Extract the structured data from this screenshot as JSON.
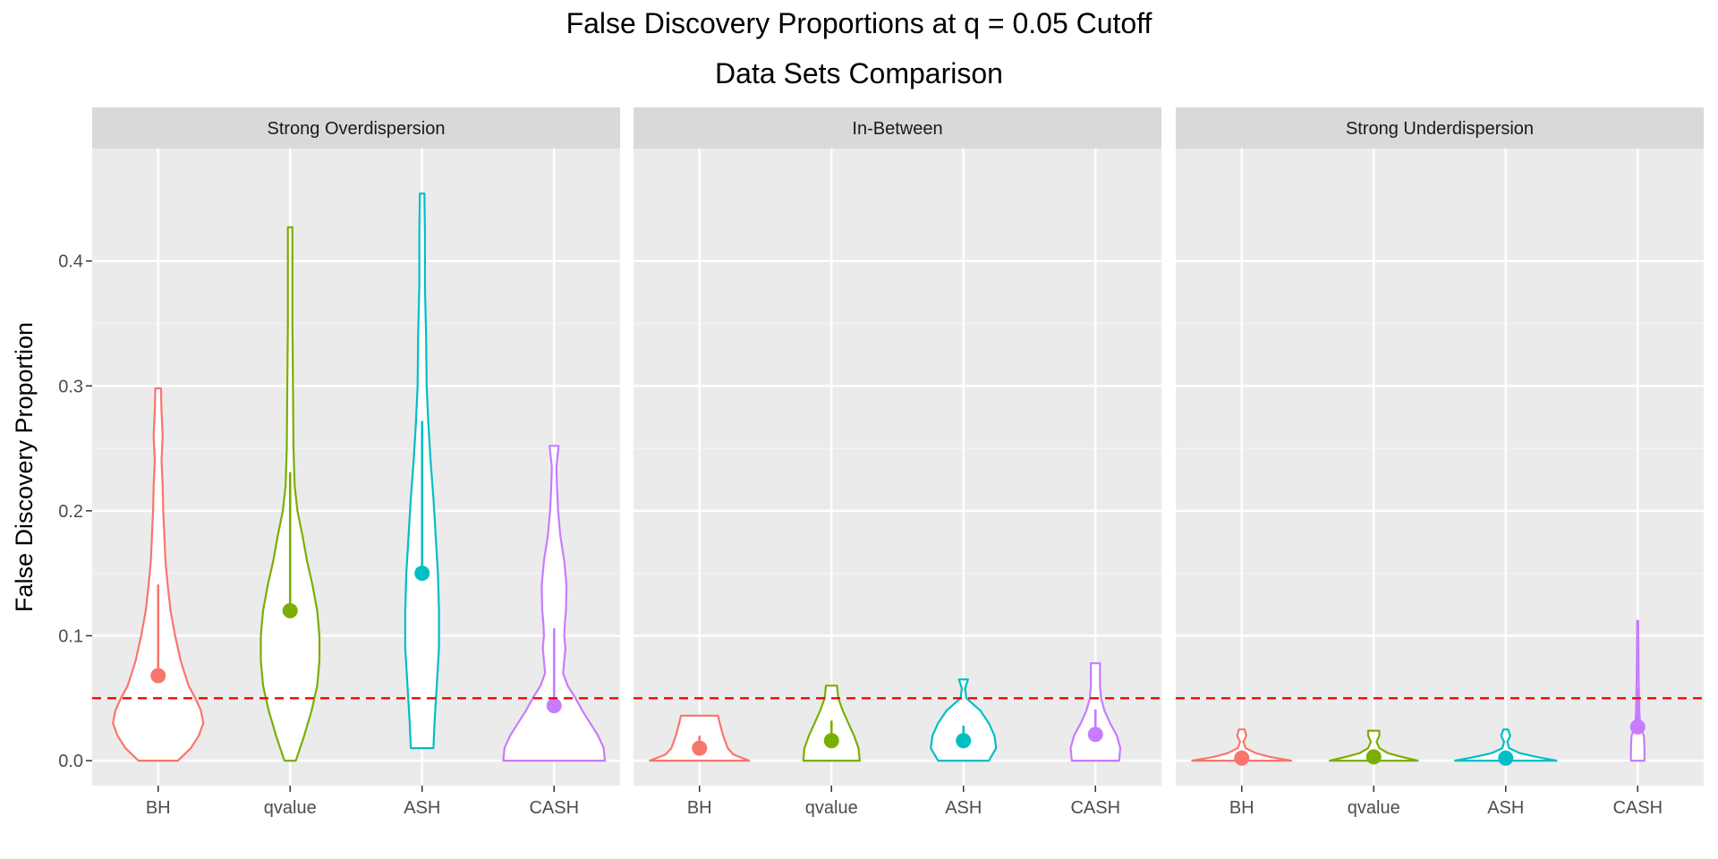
{
  "title": "False Discovery Proportions at q = 0.05 Cutoff",
  "subtitle": "Data Sets Comparison",
  "chart_data": {
    "type": "violin",
    "ylabel": "False Discovery Proportion",
    "xlabel": "",
    "ylim": [
      -0.02,
      0.49
    ],
    "yticks": [
      0.0,
      0.1,
      0.2,
      0.3,
      0.4
    ],
    "ytick_labels": [
      "0.0",
      "0.1",
      "0.2",
      "0.3",
      "0.4"
    ],
    "reference_line": {
      "y": 0.05,
      "color": "#FF0000",
      "style": "dashed"
    },
    "methods": [
      "BH",
      "qvalue",
      "ASH",
      "CASH"
    ],
    "colors": {
      "BH": "#F8766D",
      "qvalue": "#7CAE00",
      "ASH": "#00BFC4",
      "CASH": "#C77CFF"
    },
    "grid": true,
    "legend": "none",
    "panels": [
      {
        "name": "Strong Overdispersion",
        "series": [
          {
            "method": "BH",
            "point": 0.068,
            "whisker": [
              0.068,
              0.141
            ],
            "range": [
              0.0,
              0.298
            ],
            "profile": [
              [
                0.0,
                0.35
              ],
              [
                0.01,
                0.58
              ],
              [
                0.02,
                0.72
              ],
              [
                0.03,
                0.8
              ],
              [
                0.04,
                0.76
              ],
              [
                0.05,
                0.66
              ],
              [
                0.06,
                0.54
              ],
              [
                0.08,
                0.4
              ],
              [
                0.1,
                0.3
              ],
              [
                0.12,
                0.22
              ],
              [
                0.14,
                0.17
              ],
              [
                0.16,
                0.13
              ],
              [
                0.18,
                0.11
              ],
              [
                0.2,
                0.09
              ],
              [
                0.22,
                0.08
              ],
              [
                0.24,
                0.06
              ],
              [
                0.26,
                0.08
              ],
              [
                0.28,
                0.06
              ],
              [
                0.298,
                0.05
              ]
            ]
          },
          {
            "method": "qvalue",
            "point": 0.12,
            "whisker": [
              0.12,
              0.231
            ],
            "range": [
              0.0,
              0.427
            ],
            "profile": [
              [
                0.0,
                0.1
              ],
              [
                0.02,
                0.25
              ],
              [
                0.04,
                0.38
              ],
              [
                0.06,
                0.48
              ],
              [
                0.08,
                0.52
              ],
              [
                0.1,
                0.52
              ],
              [
                0.12,
                0.48
              ],
              [
                0.14,
                0.4
              ],
              [
                0.16,
                0.3
              ],
              [
                0.18,
                0.22
              ],
              [
                0.2,
                0.13
              ],
              [
                0.22,
                0.08
              ],
              [
                0.25,
                0.06
              ],
              [
                0.3,
                0.05
              ],
              [
                0.35,
                0.04
              ],
              [
                0.4,
                0.04
              ],
              [
                0.427,
                0.04
              ]
            ]
          },
          {
            "method": "ASH",
            "point": 0.15,
            "whisker": [
              0.15,
              0.272
            ],
            "range": [
              0.01,
              0.454
            ],
            "profile": [
              [
                0.01,
                0.2
              ],
              [
                0.03,
                0.22
              ],
              [
                0.06,
                0.26
              ],
              [
                0.09,
                0.3
              ],
              [
                0.12,
                0.3
              ],
              [
                0.15,
                0.28
              ],
              [
                0.18,
                0.24
              ],
              [
                0.21,
                0.2
              ],
              [
                0.24,
                0.15
              ],
              [
                0.27,
                0.11
              ],
              [
                0.3,
                0.08
              ],
              [
                0.34,
                0.07
              ],
              [
                0.38,
                0.05
              ],
              [
                0.42,
                0.05
              ],
              [
                0.454,
                0.04
              ]
            ]
          },
          {
            "method": "CASH",
            "point": 0.044,
            "whisker": [
              0.044,
              0.106
            ],
            "range": [
              0.0,
              0.252
            ],
            "profile": [
              [
                0.0,
                0.9
              ],
              [
                0.01,
                0.88
              ],
              [
                0.02,
                0.78
              ],
              [
                0.03,
                0.64
              ],
              [
                0.04,
                0.5
              ],
              [
                0.05,
                0.38
              ],
              [
                0.06,
                0.24
              ],
              [
                0.07,
                0.16
              ],
              [
                0.08,
                0.18
              ],
              [
                0.09,
                0.2
              ],
              [
                0.1,
                0.18
              ],
              [
                0.11,
                0.19
              ],
              [
                0.12,
                0.21
              ],
              [
                0.14,
                0.22
              ],
              [
                0.16,
                0.18
              ],
              [
                0.18,
                0.11
              ],
              [
                0.2,
                0.07
              ],
              [
                0.22,
                0.05
              ],
              [
                0.235,
                0.04
              ],
              [
                0.252,
                0.08
              ]
            ]
          }
        ]
      },
      {
        "name": "In-Between",
        "series": [
          {
            "method": "BH",
            "point": 0.01,
            "whisker": [
              0.01,
              0.02
            ],
            "range": [
              0.0,
              0.036
            ],
            "profile": [
              [
                0.0,
                0.88
              ],
              [
                0.005,
                0.6
              ],
              [
                0.01,
                0.5
              ],
              [
                0.02,
                0.42
              ],
              [
                0.03,
                0.36
              ],
              [
                0.036,
                0.33
              ]
            ]
          },
          {
            "method": "qvalue",
            "point": 0.016,
            "whisker": [
              0.016,
              0.032
            ],
            "range": [
              0.0,
              0.06
            ],
            "profile": [
              [
                0.0,
                0.5
              ],
              [
                0.01,
                0.48
              ],
              [
                0.02,
                0.4
              ],
              [
                0.03,
                0.3
              ],
              [
                0.04,
                0.2
              ],
              [
                0.05,
                0.12
              ],
              [
                0.06,
                0.1
              ]
            ]
          },
          {
            "method": "ASH",
            "point": 0.016,
            "whisker": [
              0.016,
              0.028
            ],
            "range": [
              0.0,
              0.065
            ],
            "profile": [
              [
                0.0,
                0.45
              ],
              [
                0.01,
                0.58
              ],
              [
                0.02,
                0.55
              ],
              [
                0.03,
                0.45
              ],
              [
                0.04,
                0.3
              ],
              [
                0.05,
                0.05
              ],
              [
                0.058,
                0.03
              ],
              [
                0.065,
                0.08
              ]
            ]
          },
          {
            "method": "CASH",
            "point": 0.021,
            "whisker": [
              0.021,
              0.041
            ],
            "range": [
              0.0,
              0.078
            ],
            "profile": [
              [
                0.0,
                0.42
              ],
              [
                0.01,
                0.44
              ],
              [
                0.02,
                0.38
              ],
              [
                0.03,
                0.26
              ],
              [
                0.04,
                0.16
              ],
              [
                0.05,
                0.1
              ],
              [
                0.06,
                0.08
              ],
              [
                0.07,
                0.08
              ],
              [
                0.078,
                0.08
              ]
            ]
          }
        ]
      },
      {
        "name": "Strong Underdispersion",
        "series": [
          {
            "method": "BH",
            "point": 0.002,
            "whisker": [
              0.002,
              0.008
            ],
            "range": [
              0.0,
              0.025
            ],
            "profile": [
              [
                0.0,
                0.88
              ],
              [
                0.003,
                0.5
              ],
              [
                0.006,
                0.25
              ],
              [
                0.01,
                0.07
              ],
              [
                0.015,
                0.03
              ],
              [
                0.02,
                0.08
              ],
              [
                0.025,
                0.05
              ]
            ]
          },
          {
            "method": "qvalue",
            "point": 0.003,
            "whisker": [
              0.003,
              0.009
            ],
            "range": [
              0.0,
              0.024
            ],
            "profile": [
              [
                0.0,
                0.78
              ],
              [
                0.003,
                0.5
              ],
              [
                0.006,
                0.25
              ],
              [
                0.01,
                0.1
              ],
              [
                0.015,
                0.05
              ],
              [
                0.02,
                0.1
              ],
              [
                0.024,
                0.1
              ]
            ]
          },
          {
            "method": "ASH",
            "point": 0.002,
            "whisker": [
              0.002,
              0.008
            ],
            "range": [
              0.0,
              0.025
            ],
            "profile": [
              [
                0.0,
                0.9
              ],
              [
                0.003,
                0.55
              ],
              [
                0.006,
                0.25
              ],
              [
                0.01,
                0.06
              ],
              [
                0.015,
                0.03
              ],
              [
                0.02,
                0.08
              ],
              [
                0.025,
                0.04
              ]
            ]
          },
          {
            "method": "CASH",
            "point": 0.027,
            "whisker": [
              0.027,
              0.058
            ],
            "range": [
              0.0,
              0.112
            ],
            "profile": [
              [
                0.0,
                0.12
              ],
              [
                0.01,
                0.12
              ],
              [
                0.02,
                0.11
              ],
              [
                0.025,
                0.06
              ],
              [
                0.03,
                0.04
              ],
              [
                0.04,
                0.03
              ],
              [
                0.05,
                0.025
              ],
              [
                0.06,
                0.02
              ],
              [
                0.08,
                0.015
              ],
              [
                0.1,
                0.01
              ],
              [
                0.112,
                0.01
              ]
            ]
          }
        ]
      }
    ]
  }
}
